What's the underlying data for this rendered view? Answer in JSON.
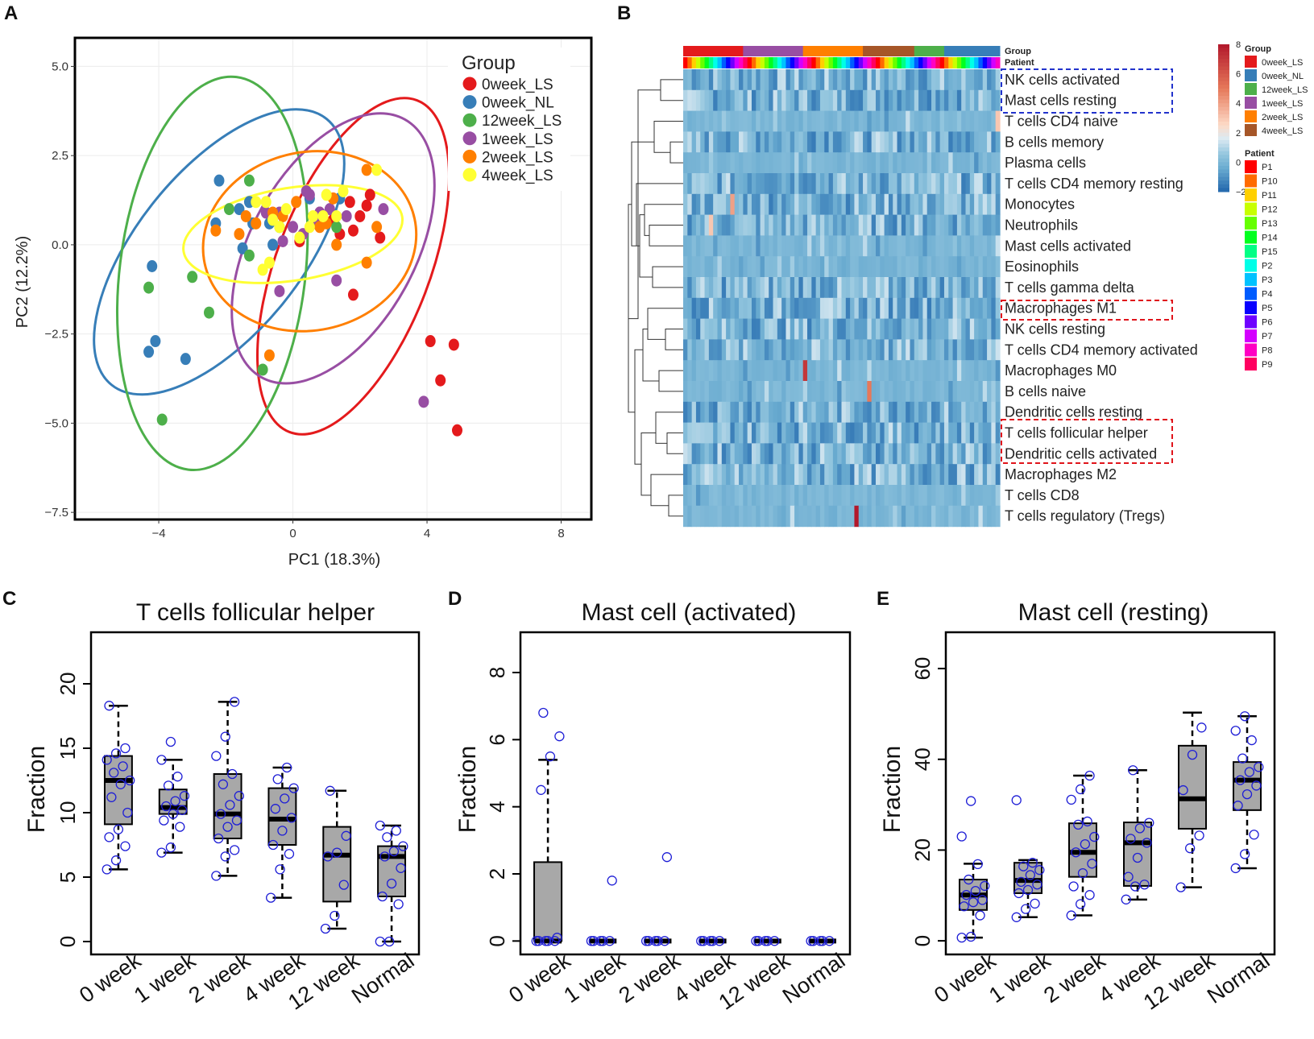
{
  "panels": {
    "A": "A",
    "B": "B",
    "C": "C",
    "D": "D",
    "E": "E"
  },
  "colors": {
    "0week_LS": "#e41a1c",
    "0week_NL": "#377eb8",
    "12week_LS": "#4daf4a",
    "1week_LS": "#984ea3",
    "2week_LS": "#ff7f00",
    "4week_LS": "#ffff33"
  },
  "chart_data": [
    {
      "id": "pca",
      "type": "scatter",
      "title": "",
      "xlabel": "PC1 (18.3%)",
      "ylabel": "PC2 (12.2%)",
      "xlim": [
        -6.5,
        8.9
      ],
      "ylim": [
        -7.7,
        5.8
      ],
      "xticks": [
        -4,
        0,
        4,
        8
      ],
      "yticks": [
        -7.5,
        -5.0,
        -2.5,
        0.0,
        2.5,
        5.0
      ],
      "ytick_labels": [
        "−7.5",
        "−5.0",
        "−2.5",
        "0.0",
        "2.5",
        "5.0"
      ],
      "xtick_labels": [
        "−4",
        "0",
        "4",
        "8"
      ],
      "legend_title": "Group",
      "legend_position": "top-right",
      "series": [
        {
          "name": "0week_LS",
          "points": [
            [
              2.3,
              1.4
            ],
            [
              1.7,
              1.2
            ],
            [
              2.0,
              0.8
            ],
            [
              1.8,
              0.4
            ],
            [
              1.2,
              0.7
            ],
            [
              2.6,
              0.2
            ],
            [
              0.2,
              0.1
            ],
            [
              1.8,
              -1.4
            ],
            [
              4.1,
              -2.7
            ],
            [
              4.8,
              -2.8
            ],
            [
              4.4,
              -3.8
            ],
            [
              4.9,
              -5.2
            ],
            [
              2.2,
              1.1
            ],
            [
              1.4,
              0.3
            ],
            [
              0.8,
              0.9
            ]
          ]
        },
        {
          "name": "0week_NL",
          "points": [
            [
              -4.2,
              -0.6
            ],
            [
              -4.3,
              -3.0
            ],
            [
              -4.1,
              -2.7
            ],
            [
              -3.2,
              -3.2
            ],
            [
              -2.3,
              0.6
            ],
            [
              -2.2,
              1.8
            ],
            [
              -1.6,
              1.0
            ],
            [
              -1.5,
              -0.1
            ],
            [
              -1.3,
              1.2
            ],
            [
              -1.2,
              0.6
            ],
            [
              0.5,
              1.3
            ],
            [
              -0.6,
              0.0
            ],
            [
              -0.7,
              0.6
            ],
            [
              1.4,
              1.3
            ]
          ]
        },
        {
          "name": "12week_LS",
          "points": [
            [
              -4.3,
              -1.2
            ],
            [
              -3.0,
              -0.9
            ],
            [
              -2.5,
              -1.9
            ],
            [
              -1.3,
              1.8
            ],
            [
              -1.3,
              -0.3
            ],
            [
              -0.9,
              -3.5
            ],
            [
              -3.9,
              -4.9
            ],
            [
              -0.4,
              0.5
            ],
            [
              1.3,
              0.5
            ],
            [
              -1.9,
              1.0
            ]
          ]
        },
        {
          "name": "1week_LS",
          "points": [
            [
              0.4,
              1.5
            ],
            [
              0.5,
              1.4
            ],
            [
              0.8,
              0.9
            ],
            [
              1.1,
              1.0
            ],
            [
              0.7,
              0.6
            ],
            [
              0.3,
              0.3
            ],
            [
              -0.3,
              0.1
            ],
            [
              -0.4,
              0.9
            ],
            [
              1.6,
              0.8
            ],
            [
              2.7,
              1.0
            ],
            [
              3.9,
              -4.4
            ],
            [
              1.3,
              -1.0
            ],
            [
              -0.4,
              -1.3
            ],
            [
              -0.8,
              0.9
            ],
            [
              0.0,
              0.5
            ]
          ]
        },
        {
          "name": "2week_LS",
          "points": [
            [
              2.2,
              2.1
            ],
            [
              2.5,
              0.5
            ],
            [
              2.2,
              -0.5
            ],
            [
              1.3,
              -0.0
            ],
            [
              0.8,
              0.5
            ],
            [
              -0.7,
              -3.1
            ],
            [
              -2.3,
              0.4
            ],
            [
              -1.1,
              0.6
            ],
            [
              0.1,
              1.2
            ],
            [
              1.2,
              1.3
            ],
            [
              -1.6,
              0.3
            ],
            [
              -0.6,
              0.9
            ],
            [
              -0.3,
              0.8
            ],
            [
              1.0,
              0.6
            ],
            [
              -1.4,
              0.8
            ]
          ]
        },
        {
          "name": "4week_LS",
          "points": [
            [
              2.5,
              2.1
            ],
            [
              1.0,
              1.4
            ],
            [
              1.3,
              0.8
            ],
            [
              0.5,
              0.5
            ],
            [
              0.6,
              0.8
            ],
            [
              -0.7,
              -0.5
            ],
            [
              -0.9,
              -0.7
            ],
            [
              -0.6,
              0.7
            ],
            [
              -0.2,
              1.0
            ],
            [
              -1.1,
              1.2
            ],
            [
              -0.8,
              1.2
            ],
            [
              0.2,
              0.2
            ],
            [
              1.5,
              1.5
            ],
            [
              -0.4,
              0.5
            ],
            [
              0.9,
              0.8
            ]
          ]
        }
      ],
      "ellipses": [
        {
          "name": "0week_LS",
          "cx": 1.8,
          "cy": -0.6,
          "rx": 5.3,
          "ry": 2.15,
          "angle": 69
        },
        {
          "name": "0week_NL",
          "cx": -2.2,
          "cy": -0.2,
          "rx": 5.1,
          "ry": 2.3,
          "angle": 51
        },
        {
          "name": "12week_LS",
          "cx": -2.4,
          "cy": -0.8,
          "rx": 5.9,
          "ry": 2.6,
          "angle": 83
        },
        {
          "name": "1week_LS",
          "cx": 1.2,
          "cy": -0.1,
          "rx": 4.4,
          "ry": 2.3,
          "angle": 61
        },
        {
          "name": "2week_LS",
          "cx": 0.5,
          "cy": 0.1,
          "rx": 3.2,
          "ry": 2.5,
          "angle": 12
        },
        {
          "name": "4week_LS",
          "cx": 0.0,
          "cy": 0.3,
          "rx": 3.3,
          "ry": 1.3,
          "angle": 9
        }
      ]
    },
    {
      "id": "heatmap",
      "type": "heatmap",
      "top_labels": [
        "Group",
        "Patient"
      ],
      "rows": [
        "NK cells activated",
        "Mast cells resting",
        "T cells CD4 naive",
        "B cells memory",
        "Plasma cells",
        "T cells CD4 memory resting",
        "Monocytes",
        "Neutrophils",
        "Mast cells activated",
        "Eosinophils",
        "T cells gamma delta",
        "Macrophages M1",
        "NK cells resting",
        "T cells CD4 memory activated",
        "Macrophages M0",
        "B cells naive",
        "Dendritic cells resting",
        "T cells follicular helper",
        "Dendritic cells activated",
        "Macrophages M2",
        "T cells CD8",
        "T cells regulatory (Tregs)"
      ],
      "highlight_blue": [
        "NK cells activated",
        "Mast cells resting"
      ],
      "highlight_red": [
        "Macrophages M1",
        "T cells follicular helper",
        "Dendritic cells activated"
      ],
      "color_scale": {
        "min": -2,
        "max": 8,
        "ticks": [
          "8",
          "6",
          "4",
          "2",
          "0",
          "−2"
        ]
      },
      "group_legend_title": "Group",
      "group_legend": [
        "0week_LS",
        "0week_NL",
        "12week_LS",
        "1week_LS",
        "2week_LS",
        "4week_LS"
      ],
      "group_legend_colors": [
        "#e41a1c",
        "#377eb8",
        "#4daf4a",
        "#984ea3",
        "#ff7f00",
        "#a65628"
      ],
      "patient_legend_title": "Patient",
      "patients": [
        "P1",
        "P10",
        "P11",
        "P12",
        "P13",
        "P14",
        "P15",
        "P2",
        "P3",
        "P4",
        "P5",
        "P6",
        "P7",
        "P8",
        "P9"
      ],
      "patient_colors": [
        "#ff0000",
        "#ff6a00",
        "#ffd000",
        "#c8ff00",
        "#66ff00",
        "#00ff1f",
        "#00ff85",
        "#00ffe8",
        "#00c2ff",
        "#005cff",
        "#0800ff",
        "#6e00ff",
        "#d400ff",
        "#ff00c3",
        "#ff0060"
      ],
      "group_bar": [
        {
          "group": "0week_LS",
          "color": "#e41a1c",
          "n": 14
        },
        {
          "group": "1week_LS",
          "color": "#984ea3",
          "n": 14
        },
        {
          "group": "2week_LS",
          "color": "#ff7f00",
          "n": 14
        },
        {
          "group": "4week_LS",
          "color": "#a65628",
          "n": 12
        },
        {
          "group": "12week_LS",
          "color": "#4daf4a",
          "n": 7
        },
        {
          "group": "0week_NL",
          "color": "#377eb8",
          "n": 13
        }
      ],
      "hot_cells": [
        {
          "row": "T cells regulatory (Tregs)",
          "col": 40,
          "value": 8
        },
        {
          "row": "Macrophages M0",
          "col": 28,
          "value": 7
        },
        {
          "row": "B cells naive",
          "col": 43,
          "value": 5
        },
        {
          "row": "Monocytes",
          "col": 11,
          "value": 4
        },
        {
          "row": "Neutrophils",
          "col": 6,
          "value": 3
        },
        {
          "row": "T cells CD4 naive",
          "col": 73,
          "value": 3
        }
      ]
    },
    {
      "id": "box_tfh",
      "type": "box",
      "title": "T cells follicular helper",
      "ylabel": "Fraction",
      "categories": [
        "0 week",
        "1 week",
        "2 week",
        "4 week",
        "12 week",
        "Normal"
      ],
      "ylim": [
        -1,
        24
      ],
      "yticks": [
        0,
        5,
        10,
        15,
        20
      ],
      "boxes": [
        {
          "whisker_low": 5.6,
          "q1": 9.1,
          "median": 12.5,
          "q3": 14.4,
          "whisker_high": 18.3
        },
        {
          "whisker_low": 6.9,
          "q1": 9.9,
          "median": 10.4,
          "q3": 11.8,
          "whisker_high": 14.1
        },
        {
          "whisker_low": 5.1,
          "q1": 8.0,
          "median": 9.9,
          "q3": 13.0,
          "whisker_high": 18.6
        },
        {
          "whisker_low": 3.4,
          "q1": 7.5,
          "median": 9.5,
          "q3": 11.9,
          "whisker_high": 13.5
        },
        {
          "whisker_low": 1.0,
          "q1": 3.1,
          "median": 6.7,
          "q3": 8.9,
          "whisker_high": 11.7
        },
        {
          "whisker_low": 0.0,
          "q1": 3.5,
          "median": 6.6,
          "q3": 7.4,
          "whisker_high": 9.0
        }
      ],
      "points": [
        [
          5.6,
          6.3,
          7.4,
          8.1,
          8.7,
          10.0,
          11.2,
          12.2,
          12.5,
          13.1,
          13.6,
          14.1,
          14.6,
          15.0,
          18.3
        ],
        [
          6.9,
          7.3,
          8.9,
          9.4,
          9.9,
          10.2,
          10.5,
          10.9,
          11.3,
          12.1,
          12.8,
          14.1,
          15.5
        ],
        [
          5.1,
          6.6,
          7.1,
          8.0,
          8.9,
          9.4,
          9.9,
          10.6,
          11.3,
          12.2,
          13.0,
          14.4,
          15.9,
          18.6
        ],
        [
          3.4,
          5.6,
          6.8,
          7.5,
          8.6,
          9.6,
          10.3,
          11.1,
          11.9,
          12.6,
          13.5
        ],
        [
          1.0,
          2.0,
          4.4,
          6.6,
          6.9,
          8.2,
          11.7
        ],
        [
          0.0,
          0.0,
          2.9,
          3.5,
          4.5,
          5.7,
          6.6,
          7.0,
          7.4,
          8.1,
          8.6,
          9.0
        ]
      ]
    },
    {
      "id": "box_mast_act",
      "type": "box",
      "title": "Mast cell (activated)",
      "ylabel": "Fraction",
      "categories": [
        "0 week",
        "1 week",
        "2 week",
        "4 week",
        "12 week",
        "Normal"
      ],
      "ylim": [
        -0.4,
        9.2
      ],
      "yticks": [
        0,
        2,
        4,
        6,
        8
      ],
      "boxes": [
        {
          "whisker_low": 0,
          "q1": 0,
          "median": 0,
          "q3": 2.35,
          "whisker_high": 5.4
        },
        {
          "whisker_low": 0,
          "q1": 0,
          "median": 0,
          "q3": 0,
          "whisker_high": 0
        },
        {
          "whisker_low": 0,
          "q1": 0,
          "median": 0,
          "q3": 0,
          "whisker_high": 0
        },
        {
          "whisker_low": 0,
          "q1": 0,
          "median": 0,
          "q3": 0,
          "whisker_high": 0
        },
        {
          "whisker_low": 0,
          "q1": 0,
          "median": 0,
          "q3": 0,
          "whisker_high": 0
        },
        {
          "whisker_low": 0,
          "q1": 0,
          "median": 0,
          "q3": 0,
          "whisker_high": 0
        }
      ],
      "points": [
        [
          0,
          0,
          0,
          0,
          0,
          0.1,
          4.5,
          5.5,
          6.1,
          6.8
        ],
        [
          0,
          0,
          0,
          0,
          0,
          1.8
        ],
        [
          0,
          0,
          0,
          0,
          0,
          2.5
        ],
        [
          0,
          0,
          0,
          0,
          0
        ],
        [
          0,
          0,
          0,
          0,
          0
        ],
        [
          0,
          0,
          0,
          0,
          0
        ]
      ]
    },
    {
      "id": "box_mast_rest",
      "type": "box",
      "title": "Mast cell (resting)",
      "ylabel": "Fraction",
      "categories": [
        "0 week",
        "1 week",
        "2 week",
        "4 week",
        "12 week",
        "Normal"
      ],
      "ylim": [
        -3,
        68
      ],
      "yticks": [
        0,
        20,
        40,
        60
      ],
      "boxes": [
        {
          "whisker_low": 0.7,
          "q1": 6.8,
          "median": 10.1,
          "q3": 13.5,
          "whisker_high": 17.0
        },
        {
          "whisker_low": 5.2,
          "q1": 10.5,
          "median": 13.3,
          "q3": 17.2,
          "whisker_high": 17.8
        },
        {
          "whisker_low": 5.6,
          "q1": 14.1,
          "median": 19.5,
          "q3": 25.9,
          "whisker_high": 36.4
        },
        {
          "whisker_low": 9.1,
          "q1": 12.1,
          "median": 21.6,
          "q3": 26.1,
          "whisker_high": 37.6
        },
        {
          "whisker_low": 11.8,
          "q1": 24.7,
          "median": 31.3,
          "q3": 43.0,
          "whisker_high": 50.3
        },
        {
          "whisker_low": 16.0,
          "q1": 28.8,
          "median": 35.4,
          "q3": 39.4,
          "whisker_high": 49.5
        }
      ],
      "points": [
        [
          0.7,
          0.9,
          5.6,
          7.6,
          8.5,
          9.0,
          10.1,
          11.0,
          12.1,
          13.5,
          16.9,
          23.0,
          30.8
        ],
        [
          5.2,
          7.0,
          8.2,
          10.5,
          11.2,
          12.4,
          13.0,
          14.5,
          15.6,
          16.4,
          17.2,
          31.0
        ],
        [
          5.6,
          8.1,
          10.1,
          12.0,
          14.9,
          17.0,
          19.5,
          21.3,
          22.9,
          25.6,
          26.3,
          31.1,
          33.4,
          36.4
        ],
        [
          9.1,
          12.0,
          12.4,
          14.1,
          18.3,
          21.6,
          22.5,
          24.8,
          26.0,
          37.6
        ],
        [
          11.8,
          20.4,
          23.2,
          33.2,
          41.0,
          47.0
        ],
        [
          16.0,
          19.1,
          23.4,
          29.8,
          32.3,
          34.2,
          35.4,
          37.2,
          38.3,
          40.2,
          44.2,
          46.3,
          49.5
        ]
      ]
    }
  ]
}
